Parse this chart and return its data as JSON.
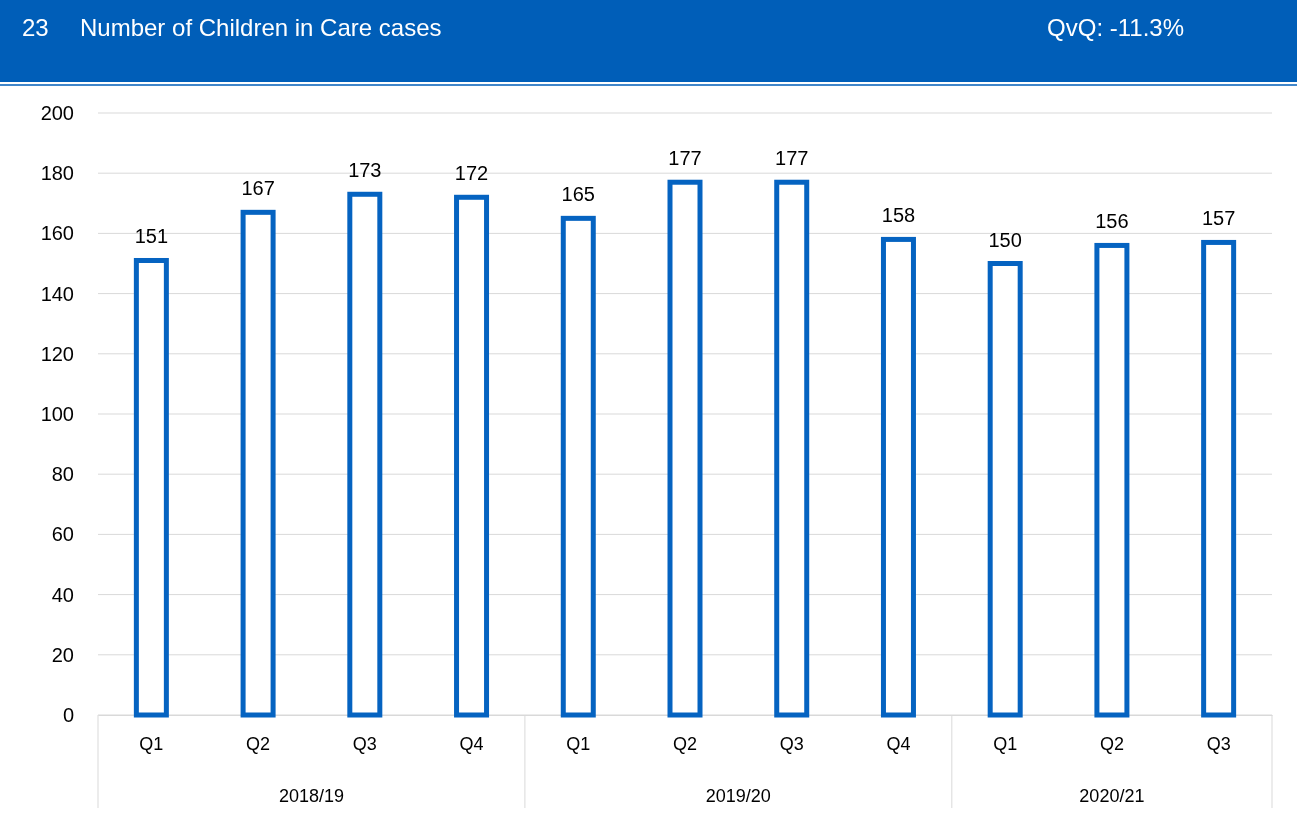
{
  "chart_data": {
    "type": "bar",
    "title": "Number of Children in Care cases",
    "categories": [
      "Q1",
      "Q2",
      "Q3",
      "Q4",
      "Q1",
      "Q2",
      "Q3",
      "Q4",
      "Q1",
      "Q2",
      "Q3"
    ],
    "values": [
      151,
      167,
      173,
      172,
      165,
      177,
      177,
      158,
      150,
      156,
      157
    ],
    "color": "#0563c1",
    "ylim": [
      0,
      200
    ],
    "yticks": [
      0,
      20,
      40,
      60,
      80,
      100,
      120,
      140,
      160,
      180,
      200
    ],
    "grid": "y",
    "data_labels": true,
    "annotations": [
      "23",
      "QvQ: -11.3%",
      "2018/19",
      "2019/20",
      "2020/21"
    ]
  }
}
